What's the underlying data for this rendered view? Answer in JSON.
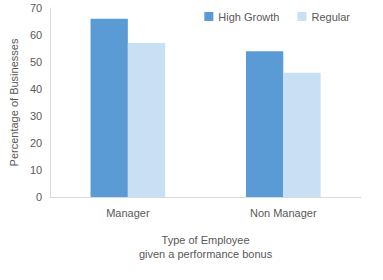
{
  "chart_data": {
    "type": "bar",
    "categories": [
      "Manager",
      "Non Manager"
    ],
    "series": [
      {
        "name": "High Growth",
        "color": "#5b9bd5",
        "values": [
          66,
          54
        ]
      },
      {
        "name": "Regular",
        "color": "#c9dff3",
        "values": [
          57,
          46
        ]
      }
    ],
    "xlabel": "Type of Employee\ngiven a performance bonus",
    "ylabel": "Percentage of Businesses",
    "ylim": [
      0,
      70
    ],
    "yticks": [
      0,
      10,
      20,
      30,
      40,
      50,
      60,
      70
    ],
    "grid": false,
    "legend": "top-right"
  }
}
